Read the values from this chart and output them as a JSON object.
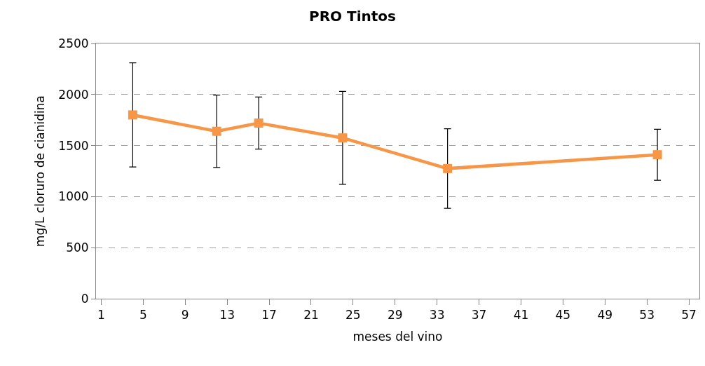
{
  "chart_data": {
    "type": "line",
    "title": "PRO Tintos",
    "xlabel": "meses del vino",
    "ylabel": "mg/L cloruro de cianidina",
    "x": [
      4,
      12,
      16,
      24,
      34,
      54
    ],
    "series": [
      {
        "color": "#f79646",
        "values": [
          1800,
          1640,
          1720,
          1575,
          1275,
          1410
        ],
        "errors": [
          510,
          355,
          255,
          455,
          390,
          250
        ]
      }
    ],
    "xlim": [
      0.5,
      58
    ],
    "xticks": [
      1,
      5,
      9,
      13,
      17,
      21,
      25,
      29,
      33,
      37,
      41,
      45,
      49,
      53,
      57
    ],
    "ylim": [
      0,
      2500
    ],
    "yticks": [
      0,
      500,
      1000,
      1500,
      2000,
      2500
    ],
    "grid": "y",
    "legend": false,
    "marker": "square",
    "line_style": "solid"
  }
}
